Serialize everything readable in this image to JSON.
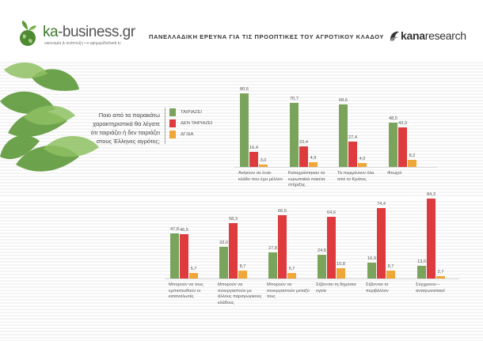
{
  "header": {
    "brand_prefix": "ka",
    "brand_suffix": "-business.gr",
    "brand_tagline": "οικονομία & ανάπτυξη   •   e-εφημερίδα/web tv",
    "survey_title": "ΠΑΝΕΛΛΑΔΙΚΗ ΕΡΕΥΝΑ ΓΙΑ ΤΙΣ ΠΡΟΟΠΤΙΚΕΣ ΤΟΥ ΑΓΡΟΤΙΚΟΥ ΚΛΑΔΟΥ",
    "partner_bold": "kana",
    "partner_rest": "research"
  },
  "question": "Ποιο από τα παρακάτω χαρακτηριστικά θα λέγατε ότι ταιριάζει ή δεν ταιριάζει στους Έλληνες αγρότες;",
  "colors": {
    "fits": "#7aa45c",
    "not_fits": "#de3b3e",
    "dk": "#f0a73a",
    "leaf": "#5f9a3a"
  },
  "chart_data": {
    "type": "bar",
    "ylim": [
      0,
      100
    ],
    "legend": [
      "ΤΑΙΡΙΑΖΕΙ",
      "ΔΕΝ ΤΑΙΡΙΑΖΕΙ",
      "ΔΓ/ΔΑ"
    ],
    "series": [
      {
        "name": "ΤΑΙΡΙΑΖΕΙ",
        "values": [
          80.6,
          70.7,
          68.6,
          48.5,
          47.8,
          33.0,
          27.8,
          24.6,
          16.9,
          13.0
        ]
      },
      {
        "name": "ΔΕΝ ΤΑΙΡΙΑΖΕΙ",
        "values": [
          16.4,
          22.4,
          27.4,
          43.3,
          46.5,
          58.3,
          66.5,
          64.6,
          74.4,
          84.3
        ]
      },
      {
        "name": "ΔΓ/ΔΑ",
        "values": [
          3.0,
          4.9,
          4.0,
          8.2,
          5.7,
          8.7,
          5.7,
          10.8,
          8.7,
          2.7
        ]
      }
    ],
    "categories": [
      "Ανήκουν σε έναν κλάδο που έχει μέλλον",
      "Καταχράστηκαν τα ευρωπαϊκά πακέτα στήριξης",
      "Τα περιμένουν όλα από το Κράτος",
      "Φτωχοί",
      "Μπορούν να τους εμπιστευθούν οι καταναλωτές",
      "Μπορούν να συνεργαστούν με άλλους παραγωγικούς κλάδους",
      "Μπορούν να συνεργαστούν μεταξύ τους",
      "Σέβονται τη δημόσια υγεία",
      "Σέβονται το περιβάλλον",
      "Σύγχρονοι – ανταγωνιστικοί"
    ]
  }
}
